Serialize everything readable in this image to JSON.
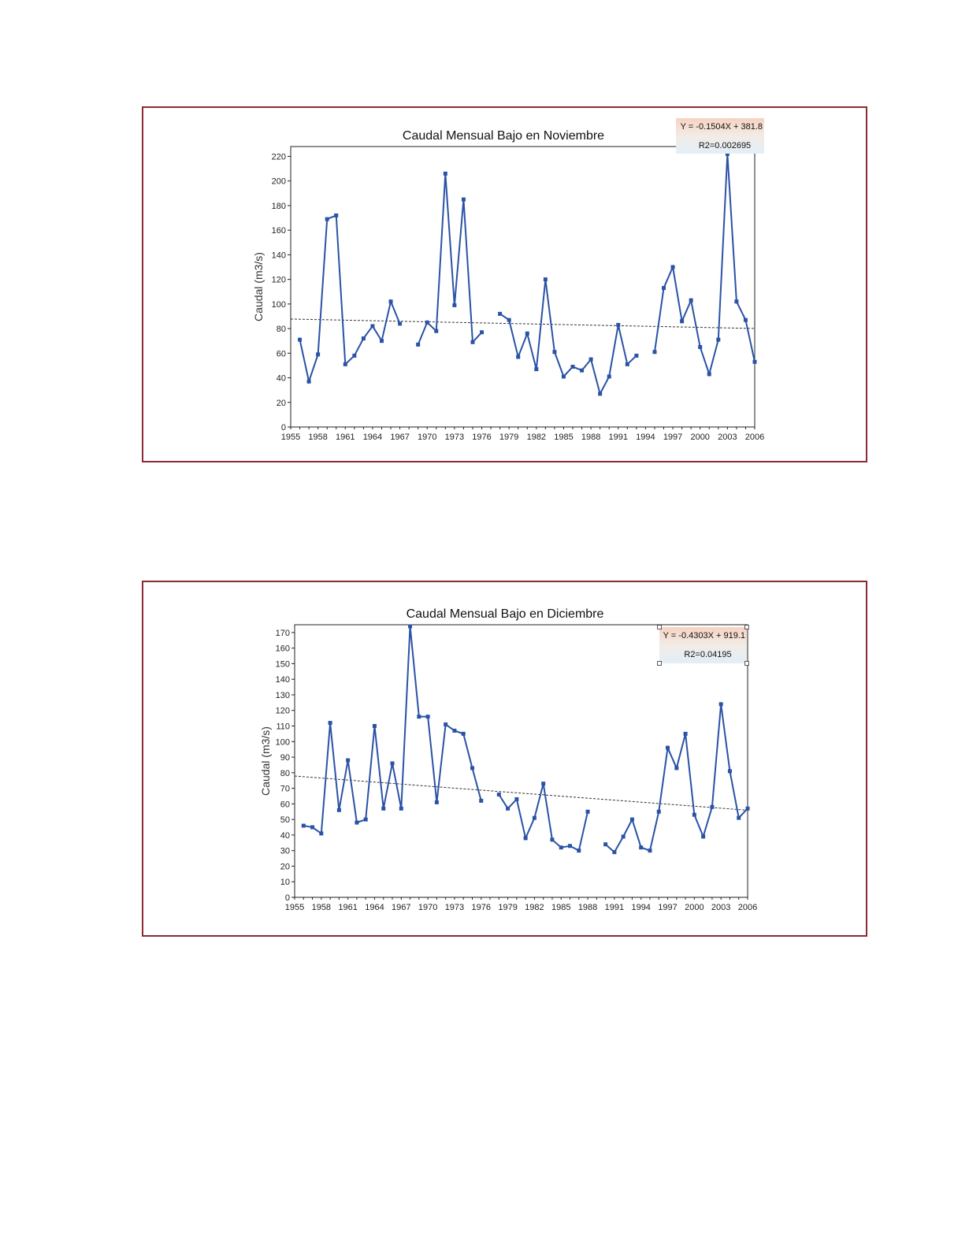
{
  "chart_data": [
    {
      "type": "line",
      "title": "Caudal Mensual Bajo en Noviembre",
      "xlabel": "",
      "ylabel": "Caudal (m3/s)",
      "xlim": [
        1955,
        2006
      ],
      "ylim": [
        0,
        228
      ],
      "yticks": [
        0,
        20,
        40,
        60,
        80,
        100,
        120,
        140,
        160,
        180,
        200,
        220
      ],
      "xticks": [
        1955,
        1958,
        1961,
        1964,
        1967,
        1970,
        1973,
        1976,
        1979,
        1982,
        1985,
        1988,
        1991,
        1994,
        1997,
        2000,
        2003,
        2006
      ],
      "equation": "Y = -0.1504X + 381.8",
      "r2": "R2=0.002695",
      "trend": {
        "slope": -0.1504,
        "intercept": 381.8
      },
      "series": [
        {
          "color": "#2a52a5",
          "x": [
            1956,
            1957,
            1958,
            1959,
            1960,
            1961,
            1962,
            1963,
            1964,
            1965,
            1966,
            1967,
            1968,
            1969,
            1970,
            1971,
            1972,
            1973,
            1974,
            1975,
            1976,
            1977,
            1978,
            1979,
            1980,
            1981,
            1982,
            1983,
            1984,
            1985,
            1986,
            1987,
            1988,
            1989,
            1990,
            1991,
            1992,
            1993,
            1994,
            1995,
            1996,
            1997,
            1998,
            1999,
            2000,
            2001,
            2002,
            2003,
            2004,
            2005,
            2006
          ],
          "y": [
            71,
            37,
            59,
            169,
            172,
            51,
            58,
            72,
            82,
            70,
            102,
            84,
            null,
            67,
            85,
            78,
            206,
            99,
            185,
            69,
            77,
            null,
            92,
            87,
            57,
            76,
            47,
            120,
            61,
            41,
            49,
            46,
            55,
            27,
            41,
            83,
            51,
            58,
            null,
            61,
            113,
            130,
            86,
            103,
            65,
            43,
            71,
            222,
            102,
            87,
            53
          ]
        }
      ]
    },
    {
      "type": "line",
      "title": "Caudal Mensual Bajo en Diciembre",
      "xlabel": "",
      "ylabel": "Caudal (m3/s)",
      "xlim": [
        1955,
        2006
      ],
      "ylim": [
        0,
        175
      ],
      "yticks": [
        0,
        10,
        20,
        30,
        40,
        50,
        60,
        70,
        80,
        90,
        100,
        110,
        120,
        130,
        140,
        150,
        160,
        170
      ],
      "xticks": [
        1955,
        1958,
        1961,
        1964,
        1967,
        1970,
        1973,
        1976,
        1979,
        1982,
        1985,
        1988,
        1991,
        1994,
        1997,
        2000,
        2003,
        2006
      ],
      "equation": "Y = -0.4303X + 919.1",
      "r2": "R2=0.04195",
      "trend": {
        "slope": -0.4303,
        "intercept": 919.1
      },
      "series": [
        {
          "color": "#2a52a5",
          "x": [
            1956,
            1957,
            1958,
            1959,
            1960,
            1961,
            1962,
            1963,
            1964,
            1965,
            1966,
            1967,
            1968,
            1969,
            1970,
            1971,
            1972,
            1973,
            1974,
            1975,
            1976,
            1977,
            1978,
            1979,
            1980,
            1981,
            1982,
            1983,
            1984,
            1985,
            1986,
            1987,
            1988,
            1989,
            1990,
            1991,
            1992,
            1993,
            1994,
            1995,
            1996,
            1997,
            1998,
            1999,
            2000,
            2001,
            2002,
            2003,
            2004,
            2005,
            2006
          ],
          "y": [
            46,
            45,
            41,
            112,
            56,
            88,
            48,
            50,
            110,
            57,
            86,
            57,
            174,
            116,
            116,
            61,
            111,
            107,
            105,
            83,
            62,
            null,
            66,
            57,
            63,
            38,
            51,
            73,
            37,
            32,
            33,
            30,
            55,
            null,
            34,
            29,
            39,
            50,
            32,
            30,
            55,
            96,
            83,
            105,
            53,
            39,
            58,
            124,
            81,
            51,
            57
          ]
        }
      ]
    }
  ]
}
